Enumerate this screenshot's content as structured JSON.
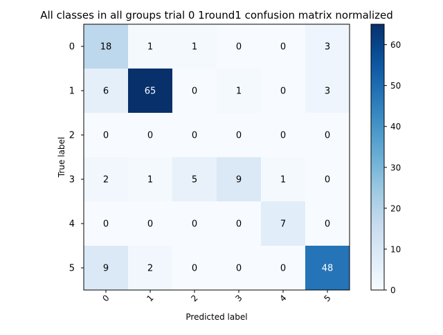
{
  "chart_data": {
    "type": "heatmap",
    "title": "All classes in all groups trial 0 1round1 confusion matrix normalized",
    "xlabel": "Predicted label",
    "ylabel": "True label",
    "x_categories": [
      "0",
      "1",
      "2",
      "3",
      "4",
      "5"
    ],
    "y_categories": [
      "0",
      "1",
      "2",
      "3",
      "4",
      "5"
    ],
    "values": [
      [
        18,
        1,
        1,
        0,
        0,
        3
      ],
      [
        6,
        65,
        0,
        1,
        0,
        3
      ],
      [
        0,
        0,
        0,
        0,
        0,
        0
      ],
      [
        2,
        1,
        5,
        9,
        1,
        0
      ],
      [
        0,
        0,
        0,
        0,
        7,
        0
      ],
      [
        9,
        2,
        0,
        0,
        0,
        48
      ]
    ],
    "colormap": "Blues",
    "vmin": 0,
    "vmax": 65,
    "colorbar_ticks": [
      0,
      10,
      20,
      30,
      40,
      50,
      60
    ]
  }
}
